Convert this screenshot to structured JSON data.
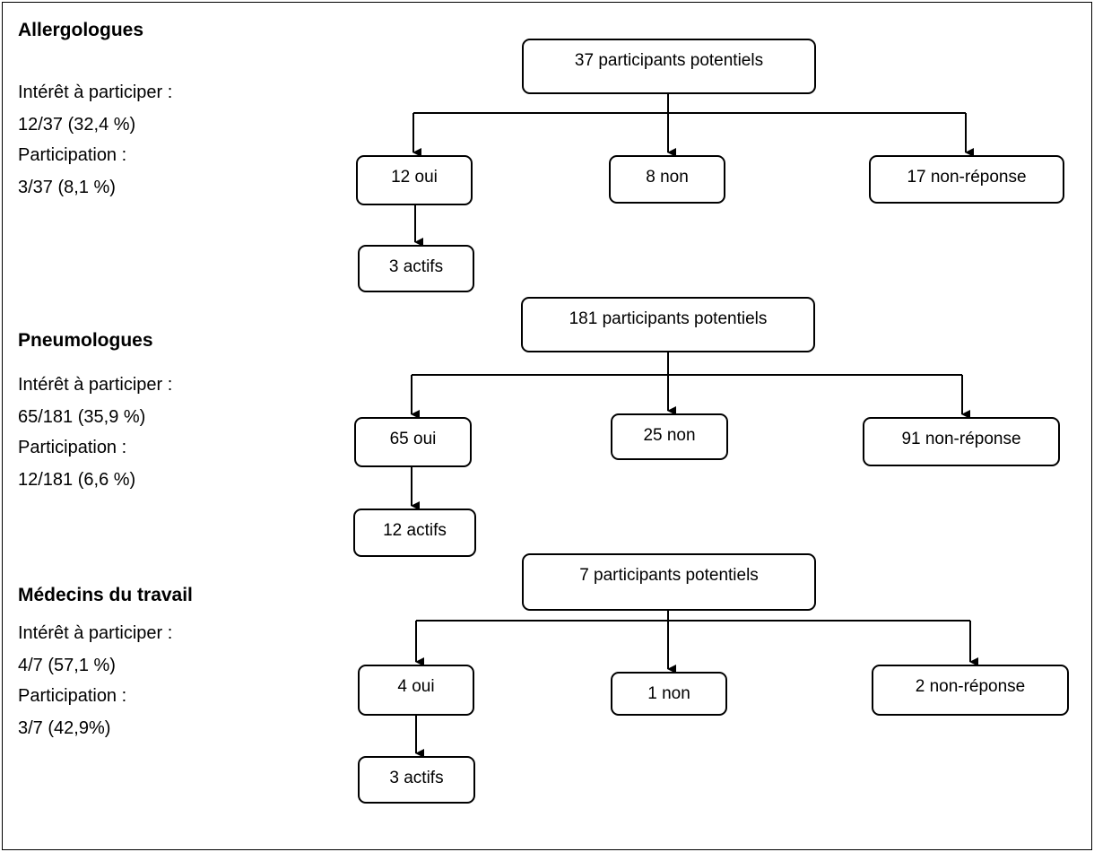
{
  "sections": [
    {
      "title": "Allergologues",
      "interest_label": "Intérêt à participer :",
      "interest_value": "12/37 (32,4 %)",
      "participation_label": "Participation :",
      "participation_value": "3/37 (8,1 %)",
      "total": "37 participants potentiels",
      "yes": "12 oui",
      "no": "8 non",
      "nonresponse": "17 non-réponse",
      "active": "3 actifs"
    },
    {
      "title": "Pneumologues",
      "interest_label": "Intérêt à participer :",
      "interest_value": "65/181 (35,9 %)",
      "participation_label": "Participation :",
      "participation_value": "12/181 (6,6 %)",
      "total": "181 participants potentiels",
      "yes": "65 oui",
      "no": "25 non",
      "nonresponse": "91 non-réponse",
      "active": "12 actifs"
    },
    {
      "title": "Médecins du travail",
      "interest_label": "Intérêt à participer :",
      "interest_value": "4/7 (57,1 %)",
      "participation_label": "Participation :",
      "participation_value": "3/7 (42,9%)",
      "total": "7 participants potentiels",
      "yes": "4 oui",
      "no": "1 non",
      "nonresponse": "2 non-réponse",
      "active": "3 actifs"
    }
  ]
}
